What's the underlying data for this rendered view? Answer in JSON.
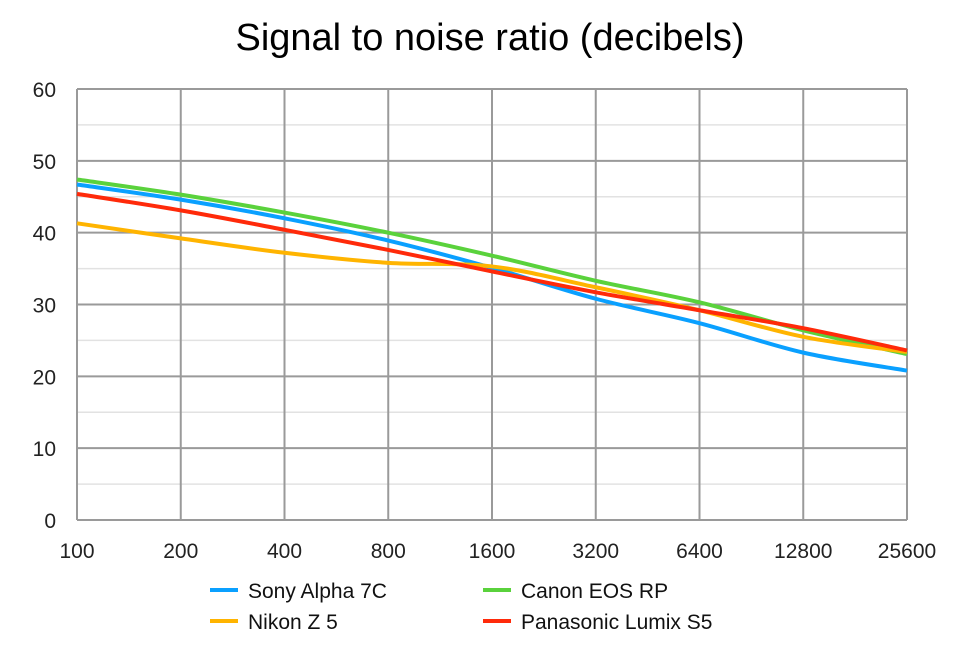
{
  "chart_data": {
    "type": "line",
    "title": "Signal to noise ratio (decibels)",
    "xlabel": "",
    "ylabel": "",
    "x": [
      "100",
      "200",
      "400",
      "800",
      "1600",
      "3200",
      "6400",
      "12800",
      "25600"
    ],
    "x_scale": "log2 (categorical ISO steps)",
    "ylim": [
      0,
      60
    ],
    "yticks": [
      0,
      10,
      20,
      30,
      40,
      50,
      60
    ],
    "grid": true,
    "legend": "bottom",
    "series": [
      {
        "name": "Sony Alpha 7C",
        "color": "#0aa0ff",
        "values": [
          46.7,
          44.6,
          42.0,
          38.9,
          35.1,
          30.8,
          27.4,
          23.3,
          20.8
        ]
      },
      {
        "name": "Canon EOS RP",
        "color": "#5ad23c",
        "values": [
          47.4,
          45.3,
          42.8,
          40.0,
          36.8,
          33.3,
          30.3,
          26.4,
          23.1
        ]
      },
      {
        "name": "Nikon Z 5",
        "color": "#ffb400",
        "values": [
          41.3,
          39.2,
          37.2,
          35.8,
          35.3,
          32.4,
          29.2,
          25.5,
          23.4
        ]
      },
      {
        "name": "Panasonic Lumix S5",
        "color": "#ff2a0a",
        "values": [
          45.4,
          43.1,
          40.4,
          37.6,
          34.6,
          31.7,
          29.2,
          26.7,
          23.6
        ]
      }
    ]
  }
}
